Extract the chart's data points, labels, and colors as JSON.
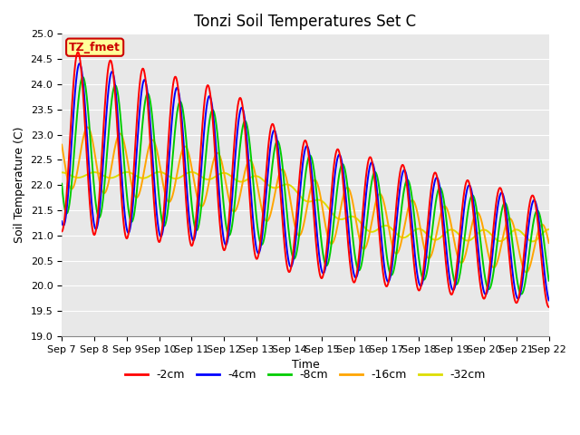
{
  "title": "Tonzi Soil Temperatures Set C",
  "xlabel": "Time",
  "ylabel": "Soil Temperature (C)",
  "ylim": [
    19.0,
    25.0
  ],
  "yticks": [
    19.0,
    19.5,
    20.0,
    20.5,
    21.0,
    21.5,
    22.0,
    22.5,
    23.0,
    23.5,
    24.0,
    24.5,
    25.0
  ],
  "colors": {
    "-2cm": "#ff0000",
    "-4cm": "#0000ff",
    "-8cm": "#00cc00",
    "-16cm": "#ffa500",
    "-32cm": "#dddd00"
  },
  "legend_label": "TZ_fmet",
  "legend_bg": "#ffff99",
  "legend_border": "#cc0000",
  "bg_color": "#e8e8e8",
  "line_width": 1.4,
  "title_fontsize": 12,
  "axis_fontsize": 9,
  "tick_fontsize": 8
}
